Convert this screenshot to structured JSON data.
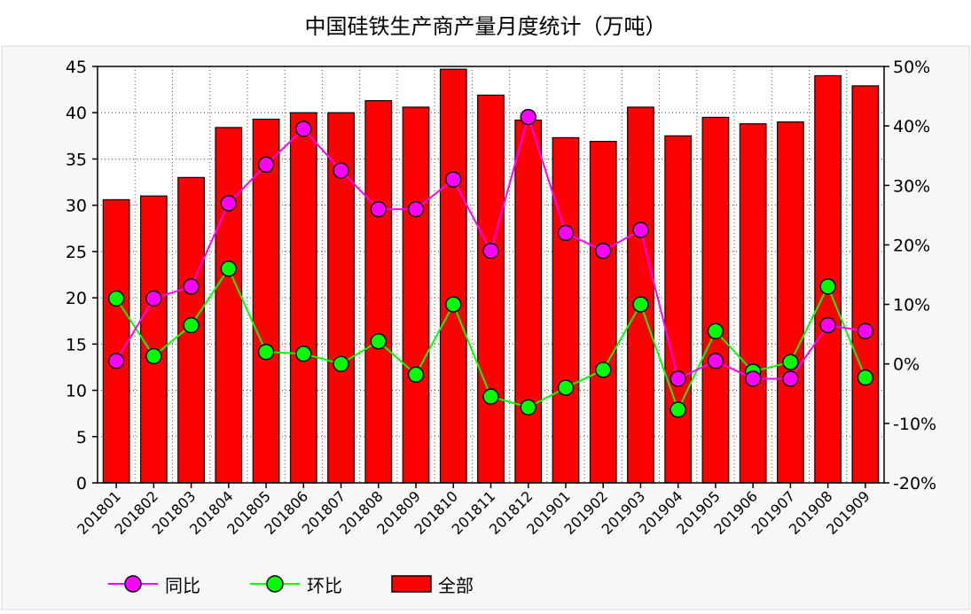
{
  "chart_data": {
    "type": "bar",
    "title": "中国硅铁生产商产量月度统计（万吨）",
    "categories": [
      "201801",
      "201802",
      "201803",
      "201804",
      "201805",
      "201806",
      "201807",
      "201808",
      "201809",
      "201810",
      "201811",
      "201812",
      "201901",
      "201902",
      "201903",
      "201904",
      "201905",
      "201906",
      "201907",
      "201908",
      "201909"
    ],
    "series": [
      {
        "name": "全部",
        "kind": "bar",
        "axis": "left",
        "color": "#ff0000",
        "values": [
          30.6,
          31.0,
          33.0,
          38.4,
          39.3,
          40.0,
          40.0,
          41.3,
          40.6,
          44.7,
          41.9,
          39.2,
          37.3,
          36.9,
          40.6,
          37.5,
          39.5,
          38.8,
          39.0,
          44.0,
          42.9
        ]
      },
      {
        "name": "同比",
        "kind": "line",
        "axis": "right",
        "color": "#ff00ff",
        "values": [
          0.5,
          11.0,
          13.0,
          27.0,
          33.5,
          39.5,
          32.5,
          26.0,
          26.0,
          31.0,
          19.0,
          41.5,
          22.0,
          19.0,
          22.5,
          -2.5,
          0.5,
          -2.5,
          -2.5,
          6.5,
          5.5
        ]
      },
      {
        "name": "环比",
        "kind": "line",
        "axis": "right",
        "color": "#00ff00",
        "values": [
          11.0,
          1.3,
          6.5,
          16.0,
          2.0,
          1.7,
          0.0,
          3.8,
          -1.8,
          10.0,
          -5.5,
          -7.3,
          -4.0,
          -1.0,
          10.0,
          -7.7,
          5.5,
          -1.3,
          0.3,
          13.0,
          -2.3
        ]
      }
    ],
    "ylim_left": [
      0,
      45
    ],
    "yticks_left": [
      0,
      5,
      10,
      15,
      20,
      25,
      30,
      35,
      40,
      45
    ],
    "ylim_right": [
      -20,
      50
    ],
    "yticks_right": [
      "-20%",
      "-10%",
      "0%",
      "10%",
      "20%",
      "30%",
      "40%",
      "50%"
    ],
    "grid": true,
    "legend_position": "bottom-left"
  }
}
